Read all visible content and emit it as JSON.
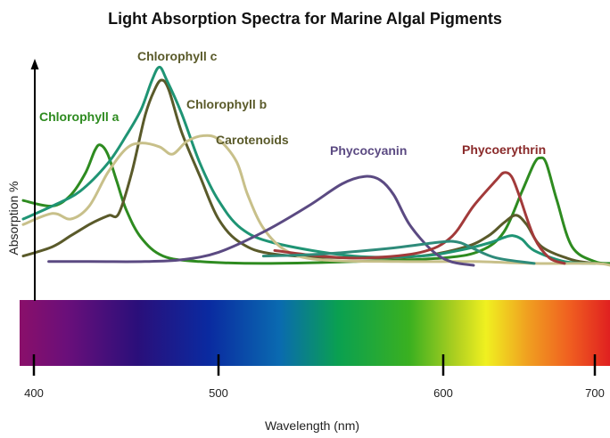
{
  "chart_data": {
    "type": "line",
    "title": "Light Absorption Spectra for Marine Algal Pigments",
    "xlabel": "Wavelength (nm)",
    "ylabel": "Absorption %",
    "xlim": [
      400,
      710
    ],
    "ylim": [
      0,
      100
    ],
    "x_ticks": [
      400,
      500,
      600,
      700
    ],
    "grid": false,
    "legend": "inline-labels",
    "spectrum_bar": true,
    "series": [
      {
        "name": "Chlorophyll a",
        "color": "#2e8b20",
        "points": [
          [
            395,
            35
          ],
          [
            410,
            32
          ],
          [
            420,
            38
          ],
          [
            428,
            50
          ],
          [
            433,
            62
          ],
          [
            436,
            65
          ],
          [
            440,
            60
          ],
          [
            445,
            45
          ],
          [
            450,
            30
          ],
          [
            458,
            15
          ],
          [
            470,
            5
          ],
          [
            490,
            2
          ],
          [
            520,
            1
          ],
          [
            560,
            2
          ],
          [
            600,
            4
          ],
          [
            625,
            8
          ],
          [
            640,
            18
          ],
          [
            652,
            40
          ],
          [
            660,
            55
          ],
          [
            664,
            58
          ],
          [
            668,
            55
          ],
          [
            675,
            35
          ],
          [
            685,
            10
          ],
          [
            700,
            2
          ],
          [
            710,
            1
          ]
        ]
      },
      {
        "name": "Chlorophyll b",
        "color": "#5a5a2a",
        "points": [
          [
            395,
            5
          ],
          [
            410,
            10
          ],
          [
            420,
            16
          ],
          [
            430,
            22
          ],
          [
            436,
            25
          ],
          [
            441,
            27
          ],
          [
            446,
            28
          ],
          [
            453,
            50
          ],
          [
            460,
            80
          ],
          [
            465,
            94
          ],
          [
            469,
            100
          ],
          [
            473,
            95
          ],
          [
            480,
            72
          ],
          [
            490,
            48
          ],
          [
            500,
            25
          ],
          [
            510,
            12
          ],
          [
            525,
            6
          ],
          [
            560,
            4
          ],
          [
            590,
            5
          ],
          [
            615,
            10
          ],
          [
            630,
            16
          ],
          [
            640,
            23
          ],
          [
            648,
            27
          ],
          [
            655,
            22
          ],
          [
            665,
            10
          ],
          [
            685,
            3
          ],
          [
            700,
            1
          ]
        ]
      },
      {
        "name": "Chlorophyll c",
        "color": "#1f9474",
        "points": [
          [
            395,
            25
          ],
          [
            410,
            32
          ],
          [
            425,
            40
          ],
          [
            440,
            55
          ],
          [
            450,
            70
          ],
          [
            458,
            84
          ],
          [
            464,
            100
          ],
          [
            468,
            107
          ],
          [
            472,
            100
          ],
          [
            480,
            82
          ],
          [
            490,
            55
          ],
          [
            500,
            35
          ],
          [
            510,
            20
          ],
          [
            525,
            12
          ],
          [
            560,
            5
          ],
          [
            590,
            5
          ],
          [
            610,
            8
          ],
          [
            630,
            12
          ],
          [
            640,
            15
          ],
          [
            646,
            16
          ],
          [
            652,
            14
          ],
          [
            660,
            8
          ],
          [
            680,
            2
          ],
          [
            700,
            1
          ]
        ]
      },
      {
        "name": "Carotenoids",
        "color": "#c8c08a",
        "points": [
          [
            395,
            22
          ],
          [
            410,
            28
          ],
          [
            420,
            25
          ],
          [
            430,
            32
          ],
          [
            440,
            50
          ],
          [
            450,
            63
          ],
          [
            458,
            66
          ],
          [
            468,
            64
          ],
          [
            475,
            60
          ],
          [
            483,
            67
          ],
          [
            492,
            70
          ],
          [
            500,
            68
          ],
          [
            508,
            56
          ],
          [
            513,
            38
          ],
          [
            520,
            20
          ],
          [
            530,
            8
          ],
          [
            545,
            3
          ],
          [
            580,
            2
          ],
          [
            620,
            2
          ],
          [
            660,
            1
          ],
          [
            700,
            1
          ],
          [
            710,
            0
          ]
        ]
      },
      {
        "name": "Phycocyanin",
        "color": "#5b4a82",
        "points": [
          [
            408,
            2
          ],
          [
            430,
            2
          ],
          [
            460,
            2
          ],
          [
            480,
            3
          ],
          [
            500,
            7
          ],
          [
            520,
            18
          ],
          [
            540,
            32
          ],
          [
            555,
            44
          ],
          [
            565,
            48
          ],
          [
            572,
            46
          ],
          [
            578,
            38
          ],
          [
            585,
            22
          ],
          [
            595,
            8
          ],
          [
            605,
            2
          ],
          [
            620,
            0
          ]
        ]
      },
      {
        "name": "Phycoerythrin",
        "color": "#a23a3a",
        "points": [
          [
            525,
            8
          ],
          [
            545,
            5
          ],
          [
            565,
            4
          ],
          [
            590,
            7
          ],
          [
            605,
            15
          ],
          [
            620,
            32
          ],
          [
            635,
            46
          ],
          [
            640,
            50
          ],
          [
            645,
            48
          ],
          [
            650,
            38
          ],
          [
            660,
            15
          ],
          [
            670,
            4
          ],
          [
            680,
            1
          ]
        ]
      },
      {
        "name": "",
        "color": "#2e8b7a",
        "points": [
          [
            520,
            5
          ],
          [
            545,
            6
          ],
          [
            575,
            9
          ],
          [
            595,
            12
          ],
          [
            605,
            13
          ],
          [
            612,
            12
          ],
          [
            620,
            9
          ],
          [
            635,
            4
          ],
          [
            660,
            1
          ]
        ]
      }
    ],
    "label_positions_nm": {}
  },
  "labels": {
    "series": [
      {
        "key": "chl_a",
        "text": "Chlorophyll a",
        "color": "#2e8b20"
      },
      {
        "key": "chl_c",
        "text": "Chlorophyll c",
        "color": "#5a5a2a"
      },
      {
        "key": "chl_b",
        "text": "Chlorophyll b",
        "color": "#5a5a2a"
      },
      {
        "key": "carot",
        "text": "Carotenoids",
        "color": "#5a5a2a"
      },
      {
        "key": "phycocyanin",
        "text": "Phycocyanin",
        "color": "#5b4a82"
      },
      {
        "key": "phycoerythrin",
        "text": "Phycoerythrin",
        "color": "#8a2a2a"
      }
    ]
  }
}
